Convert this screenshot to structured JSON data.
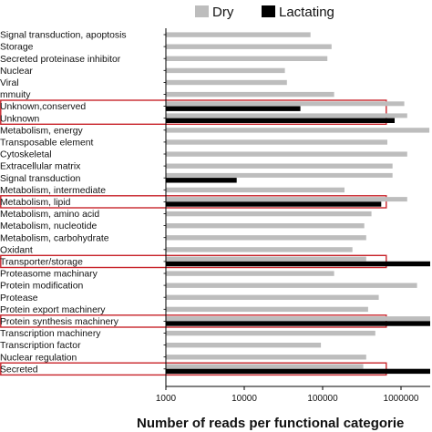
{
  "chart_data": {
    "type": "bar",
    "orientation": "horizontal",
    "xlabel": "Number of reads per functional categorie",
    "xscale": "log",
    "xlim": [
      1000,
      100000000
    ],
    "xticks": [
      "1000",
      "10000",
      "100000",
      "1000000",
      "10000000",
      "100000000"
    ],
    "legend_position": "top-right",
    "categories": [
      "Signal transduction, apoptosis",
      "Storage",
      "Secreted proteinase inhibitor",
      "Nuclear",
      "Viral",
      "mmuity",
      "Unknown,conserved",
      "Unknown",
      "Metabolism, energy",
      "Transposable element",
      "Cytoskeletal",
      "Extracellular matrix",
      "Signal transduction",
      "Metabolism, intermediate",
      "Metabolism, lipid",
      "Metabolism, amino acid",
      "Metabolism, nucleotide",
      "Metabolism, carbohydrate",
      "Oxidant",
      "Transporter/storage",
      "Proteasome machinary",
      "Protein modification",
      "Protease",
      "Protein export machinery",
      "Protein synthesis machinery",
      "Transcription machinery",
      "Transcription factor",
      "Nuclear regulation",
      "Secreted"
    ],
    "series": [
      {
        "name": "Dry",
        "color": "#bdbdbd",
        "values": [
          70000,
          130000,
          115000,
          33000,
          35000,
          140000,
          1100000,
          1200000,
          2300000,
          670000,
          1200000,
          780000,
          780000,
          190000,
          1200000,
          420000,
          340000,
          360000,
          240000,
          360000,
          140000,
          1600000,
          520000,
          380000,
          6200000,
          470000,
          95000,
          360000,
          330000
        ]
      },
      {
        "name": "Lactating",
        "color": "#000000",
        "values": [
          null,
          null,
          null,
          null,
          null,
          null,
          52000,
          830000,
          null,
          null,
          null,
          null,
          8000,
          null,
          560000,
          null,
          null,
          null,
          null,
          2400000,
          null,
          null,
          null,
          null,
          3500000,
          null,
          null,
          null,
          14000000
        ]
      }
    ],
    "highlighted_categories": [
      "Unknown,conserved",
      "Unknown",
      "Metabolism, lipid",
      "Transporter/storage",
      "Protein synthesis machinery",
      "Secreted"
    ]
  }
}
